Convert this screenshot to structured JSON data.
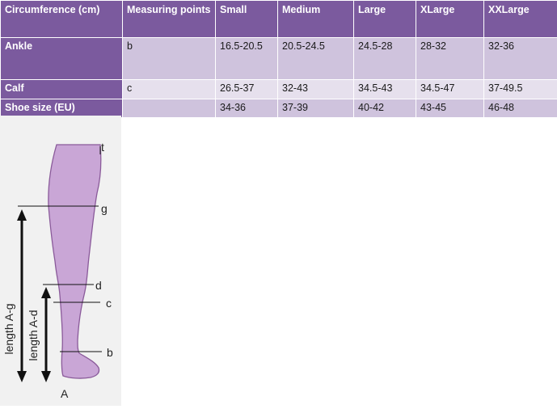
{
  "table": {
    "headers": [
      "Circumference (cm)",
      "Measuring points",
      "Small",
      "Medium",
      "Large",
      "XLarge",
      "XXLarge"
    ],
    "rows": [
      {
        "label": "Ankle",
        "point": "b",
        "values": [
          "16.5-20.5",
          "20.5-24.5",
          "24.5-28",
          "28-32",
          "32-36"
        ]
      },
      {
        "label": "Calf",
        "point": "c",
        "values": [
          "26.5-37",
          "32-43",
          "34.5-43",
          "34.5-47",
          "37-49.5"
        ]
      },
      {
        "label": "Shoe size (EU)",
        "point": "",
        "values": [
          "34-36",
          "37-39",
          "40-42",
          "43-45",
          "46-48"
        ]
      }
    ]
  },
  "diagram": {
    "point_labels": {
      "t": "t",
      "g": "g",
      "d": "d",
      "c": "c",
      "b": "b",
      "A": "A"
    },
    "length_labels": {
      "a_g": "length A-g",
      "a_d": "length A-d"
    },
    "colors": {
      "leg_fill": "#c9a6d6",
      "leg_stroke": "#8a5a9a",
      "line": "#111111"
    }
  }
}
